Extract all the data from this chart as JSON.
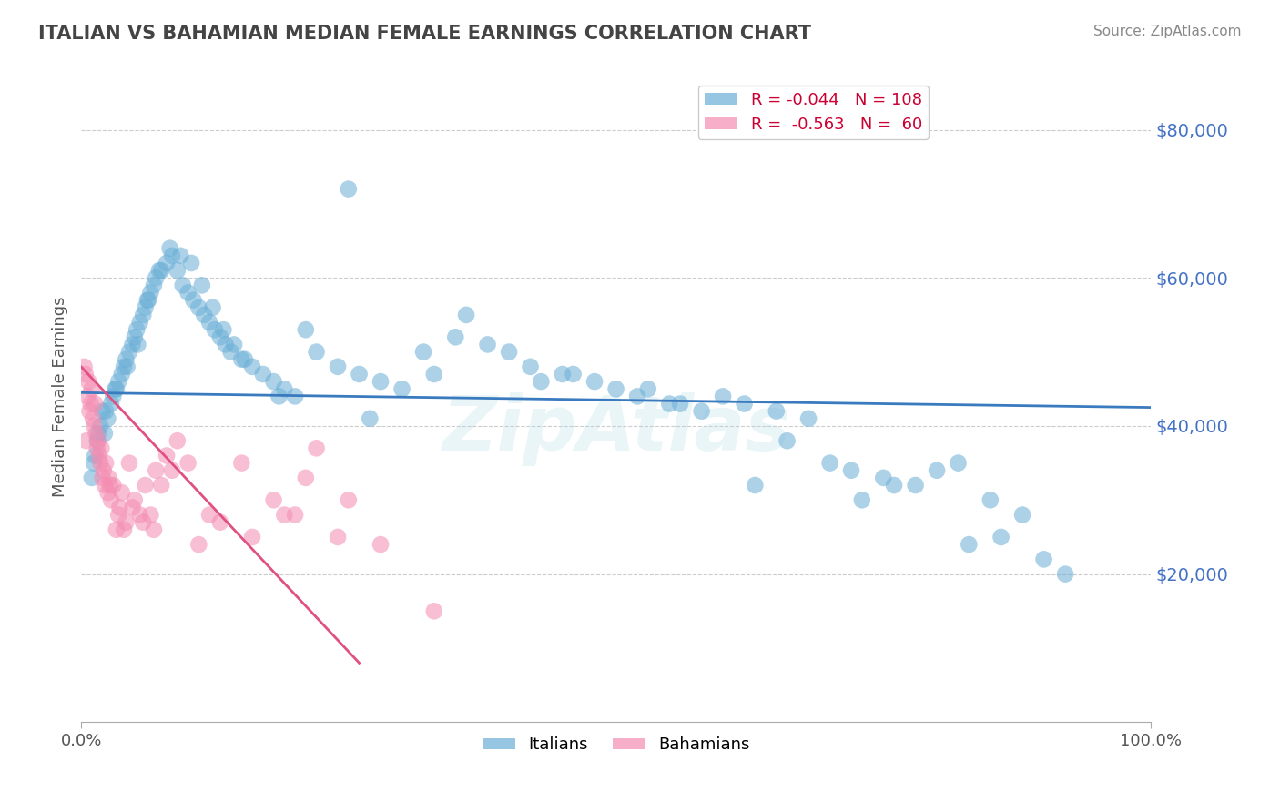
{
  "title": "ITALIAN VS BAHAMIAN MEDIAN FEMALE EARNINGS CORRELATION CHART",
  "source_text": "Source: ZipAtlas.com",
  "ylabel": "Median Female Earnings",
  "xlim": [
    0,
    100
  ],
  "ylim": [
    0,
    88000
  ],
  "yticks": [
    0,
    20000,
    40000,
    60000,
    80000
  ],
  "ytick_labels": [
    "",
    "$20,000",
    "$40,000",
    "$60,000",
    "$80,000"
  ],
  "legend_label1": "Italians",
  "legend_label2": "Bahamians",
  "blue_color": "#6aaed6",
  "pink_color": "#f48cb1",
  "blue_line_color": "#3a7abf",
  "pink_line_color": "#e05080",
  "watermark": "ZipAtlas",
  "background_color": "#ffffff",
  "grid_color": "#cccccc",
  "title_color": "#444444",
  "axis_label_color": "#555555",
  "ytick_label_color": "#4472c4",
  "blue_scatter_x": [
    1.2,
    1.5,
    1.8,
    2.0,
    2.2,
    2.5,
    2.8,
    3.0,
    3.2,
    3.5,
    3.8,
    4.0,
    4.2,
    4.5,
    4.8,
    5.0,
    5.2,
    5.5,
    5.8,
    6.0,
    6.2,
    6.5,
    6.8,
    7.0,
    7.5,
    8.0,
    8.5,
    9.0,
    9.5,
    10.0,
    10.5,
    11.0,
    11.5,
    12.0,
    12.5,
    13.0,
    13.5,
    14.0,
    15.0,
    16.0,
    17.0,
    18.0,
    19.0,
    20.0,
    22.0,
    24.0,
    26.0,
    28.0,
    30.0,
    32.0,
    35.0,
    38.0,
    40.0,
    42.0,
    45.0,
    48.0,
    50.0,
    52.0,
    55.0,
    58.0,
    60.0,
    62.0,
    65.0,
    68.0,
    70.0,
    72.0,
    75.0,
    78.0,
    80.0,
    82.0,
    85.0,
    88.0,
    90.0,
    1.0,
    1.3,
    1.6,
    2.3,
    3.3,
    4.3,
    5.3,
    6.3,
    7.3,
    8.3,
    9.3,
    10.3,
    11.3,
    12.3,
    13.3,
    14.3,
    15.3,
    25.0,
    36.0,
    46.0,
    56.0,
    66.0,
    76.0,
    86.0,
    92.0,
    18.5,
    21.0,
    27.0,
    33.0,
    43.0,
    53.0,
    63.0,
    73.0,
    83.0
  ],
  "blue_scatter_y": [
    35000,
    38000,
    40000,
    42000,
    39000,
    41000,
    43000,
    44000,
    45000,
    46000,
    47000,
    48000,
    49000,
    50000,
    51000,
    52000,
    53000,
    54000,
    55000,
    56000,
    57000,
    58000,
    59000,
    60000,
    61000,
    62000,
    63000,
    61000,
    59000,
    58000,
    57000,
    56000,
    55000,
    54000,
    53000,
    52000,
    51000,
    50000,
    49000,
    48000,
    47000,
    46000,
    45000,
    44000,
    50000,
    48000,
    47000,
    46000,
    45000,
    50000,
    52000,
    51000,
    50000,
    48000,
    47000,
    46000,
    45000,
    44000,
    43000,
    42000,
    44000,
    43000,
    42000,
    41000,
    35000,
    34000,
    33000,
    32000,
    34000,
    35000,
    30000,
    28000,
    22000,
    33000,
    36000,
    39000,
    42000,
    45000,
    48000,
    51000,
    57000,
    61000,
    64000,
    63000,
    62000,
    59000,
    56000,
    53000,
    51000,
    49000,
    72000,
    55000,
    47000,
    43000,
    38000,
    32000,
    25000,
    20000,
    44000,
    53000,
    41000,
    47000,
    46000,
    45000,
    32000,
    30000,
    24000
  ],
  "pink_scatter_x": [
    0.5,
    0.8,
    1.0,
    1.2,
    1.5,
    1.8,
    2.0,
    2.2,
    2.5,
    2.8,
    3.0,
    3.5,
    4.0,
    4.5,
    5.0,
    5.5,
    6.0,
    7.0,
    8.0,
    9.0,
    10.0,
    12.0,
    15.0,
    18.0,
    20.0,
    22.0,
    25.0,
    1.3,
    1.6,
    2.3,
    3.3,
    6.5,
    7.5,
    11.0,
    13.0,
    16.0,
    19.0,
    28.0,
    33.0,
    0.6,
    0.9,
    1.1,
    1.4,
    1.7,
    2.1,
    2.6,
    3.8,
    4.8,
    5.8,
    0.7,
    1.9,
    0.4,
    0.3,
    2.7,
    3.6,
    4.2,
    6.8,
    8.5,
    21.0,
    24.0
  ],
  "pink_scatter_y": [
    38000,
    42000,
    45000,
    40000,
    37000,
    35000,
    33000,
    32000,
    31000,
    30000,
    32000,
    28000,
    26000,
    35000,
    30000,
    28000,
    32000,
    34000,
    36000,
    38000,
    35000,
    28000,
    35000,
    30000,
    28000,
    37000,
    30000,
    43000,
    38000,
    35000,
    26000,
    28000,
    32000,
    24000,
    27000,
    25000,
    28000,
    24000,
    15000,
    44000,
    43000,
    41000,
    39000,
    36000,
    34000,
    33000,
    31000,
    29000,
    27000,
    46000,
    37000,
    47000,
    48000,
    32000,
    29000,
    27000,
    26000,
    34000,
    33000,
    25000
  ],
  "blue_line_x": [
    0,
    100
  ],
  "blue_line_y": [
    44500,
    42500
  ],
  "pink_line_x": [
    0,
    26
  ],
  "pink_line_y": [
    48000,
    8000
  ]
}
